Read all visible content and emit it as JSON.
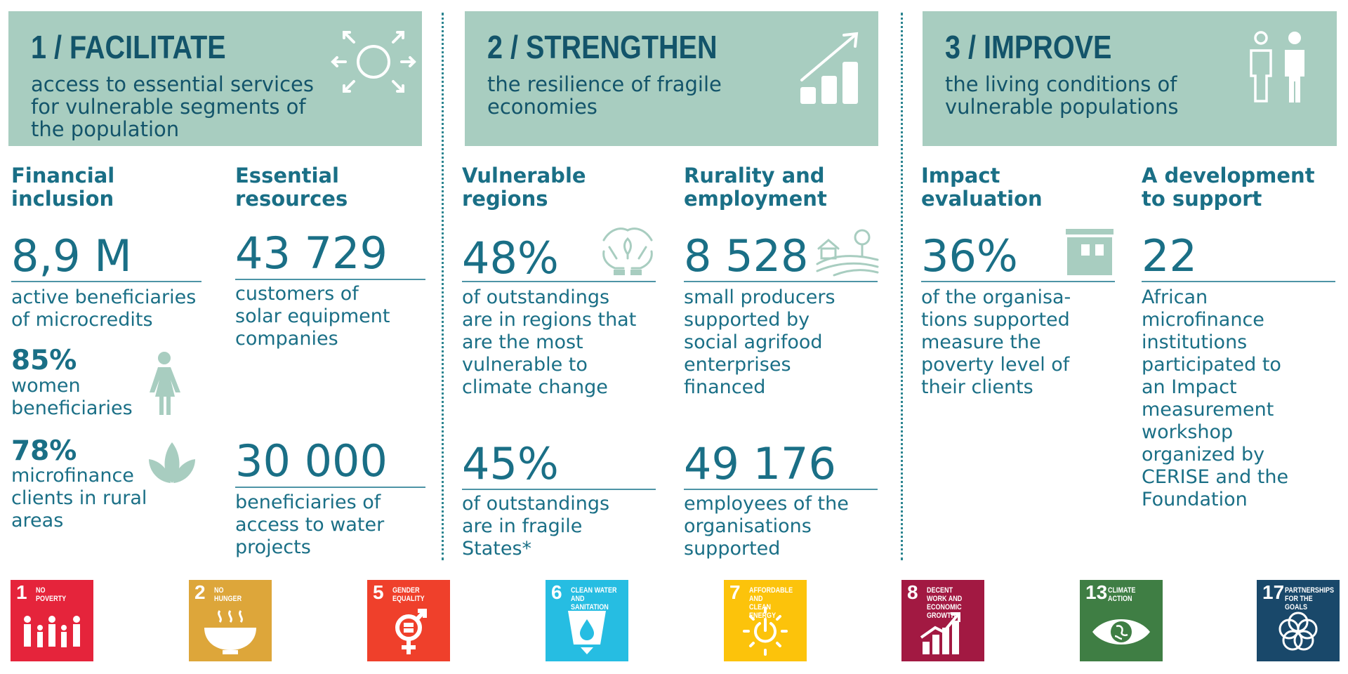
{
  "pillars": [
    {
      "title": "1 / FACILITATE",
      "subtitle": "access to essential services\nfor vulnerable segments of\nthe population",
      "icon": "sun-arrows-icon"
    },
    {
      "title": "2 / STRENGTHEN",
      "subtitle": "the resilience of fragile\neconomies",
      "icon": "growth-chart-icon"
    },
    {
      "title": "3 / IMPROVE",
      "subtitle": "the living conditions of\nvulnerable populations",
      "icon": "people-icon"
    }
  ],
  "financial_inclusion": {
    "heading": "Financial\ninclusion",
    "value": "8,9 M",
    "desc": "active beneficiaries\nof microcredits",
    "women_pct": "85%",
    "women_desc": "women\nbeneficiaries",
    "rural_pct": "78%",
    "rural_desc": "microfinance\nclients in rural\nareas"
  },
  "essential_resources": {
    "heading": "Essential\nresources",
    "value1": "43 729",
    "desc1": "customers of\nsolar equipment\ncompanies",
    "value2": "30 000",
    "desc2": "beneficiaries of\naccess to water\nprojects"
  },
  "vulnerable_regions": {
    "heading": "Vulnerable\nregions",
    "value1": "48%",
    "desc1": "of outstandings\nare in regions that\nare the most\nvulnerable to\nclimate change",
    "value2": "45%",
    "desc2": "of outstandings\nare in fragile\nStates*"
  },
  "rurality_employment": {
    "heading": "Rurality and\nemployment",
    "value1": "8 528",
    "desc1": "small producers\nsupported by\nsocial agrifood\nenterprises\nfinanced",
    "value2": "49 176",
    "desc2": "employees of the\norganisations\nsupported"
  },
  "impact_evaluation": {
    "heading": "Impact\nevaluation",
    "value": "36%",
    "desc": "of the organisa-\ntions supported\nmeasure the\npoverty level of\ntheir clients"
  },
  "development_support": {
    "heading": "A development\nto support",
    "value": "22",
    "desc": "African\nmicrofinance\ninstitutions\nparticipated to\nan Impact\nmeasurement\nworkshop\norganized by\nCERISE and the\nFoundation"
  },
  "sdgs": [
    {
      "num": "1",
      "label": "NO\nPOVERTY",
      "color": "#e5243b",
      "icon": "family-icon"
    },
    {
      "num": "2",
      "label": "NO\nHUNGER",
      "color": "#dda63a",
      "icon": "bowl-icon"
    },
    {
      "num": "5",
      "label": "GENDER\nEQUALITY",
      "color": "#ef402b",
      "icon": "gender-equality-icon"
    },
    {
      "num": "6",
      "label": "CLEAN WATER\nAND SANITATION",
      "color": "#26bde2",
      "icon": "water-drop-icon"
    },
    {
      "num": "7",
      "label": "AFFORDABLE AND\nCLEAN ENERGY",
      "color": "#fcc30b",
      "icon": "power-sun-icon"
    },
    {
      "num": "8",
      "label": "DECENT WORK AND\nECONOMIC GROWTH",
      "color": "#a21942",
      "icon": "growth-bars-icon"
    },
    {
      "num": "13",
      "label": "CLIMATE\nACTION",
      "color": "#3f7e44",
      "icon": "eye-globe-icon"
    },
    {
      "num": "17",
      "label": "PARTNERSHIPS\nFOR THE GOALS",
      "color": "#19486a",
      "icon": "rings-icon"
    }
  ]
}
